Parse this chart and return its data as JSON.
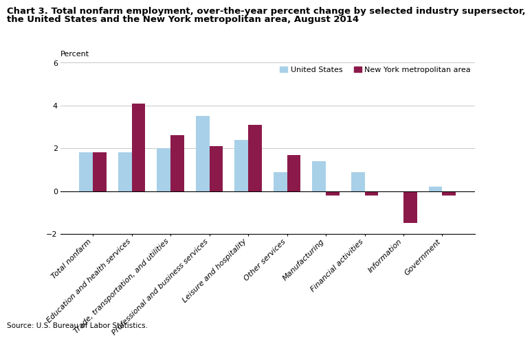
{
  "title_line1": "Chart 3. Total nonfarm employment, over-the-year percent change by selected industry supersector,",
  "title_line2": "the United States and the New York metropolitan area, August 2014",
  "ylabel": "Percent",
  "source": "Source: U.S. Bureau of Labor Statistics.",
  "categories": [
    "Total nonfarm",
    "Education and health services",
    "Trade, transportation, and utilities",
    "Professional and business services",
    "Leisure and hospitality",
    "Other services",
    "Manufacturing",
    "Financial activities",
    "Information",
    "Government"
  ],
  "us_values": [
    1.8,
    1.8,
    2.0,
    3.5,
    2.4,
    0.9,
    1.4,
    0.9,
    0.0,
    0.2
  ],
  "ny_values": [
    1.8,
    4.1,
    2.6,
    2.1,
    3.1,
    1.7,
    -0.2,
    -0.2,
    -1.5,
    -0.2
  ],
  "us_color": "#a8d0e8",
  "ny_color": "#8b1a4a",
  "ylim": [
    -2,
    6
  ],
  "yticks": [
    -2,
    0,
    2,
    4,
    6
  ],
  "legend_us": "United States",
  "legend_ny": "New York metropolitan area",
  "bar_width": 0.35,
  "background_color": "#ffffff",
  "grid_color": "#c8c8c8",
  "title_fontsize": 9.5,
  "tick_fontsize": 8,
  "label_fontsize": 8
}
